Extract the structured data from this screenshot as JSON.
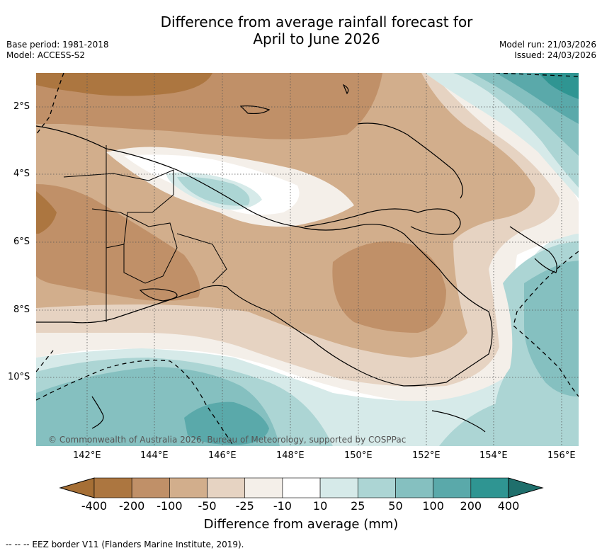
{
  "title_line1": "Difference from average rainfall forecast for",
  "title_line2": "April to June 2026",
  "meta_left": [
    "Base period: 1981-2018",
    "Model: ACCESS-S2"
  ],
  "meta_right": [
    "Model run: 21/03/2026",
    "Issued: 24/03/2026"
  ],
  "lat_labels": [
    "2°S",
    "4°S",
    "6°S",
    "8°S",
    "10°S"
  ],
  "lon_labels": [
    "142°E",
    "144°E",
    "146°E",
    "148°E",
    "150°E",
    "152°E",
    "154°E",
    "156°E"
  ],
  "copyright": "© Commonwealth of Australia 2026, Bureau of Meteorology, supported by COSPPac",
  "colorbar": {
    "title": "Difference from average (mm)",
    "ticks": [
      "-400",
      "-200",
      "-100",
      "-50",
      "-25",
      "-10",
      "10",
      "25",
      "50",
      "100",
      "200",
      "400"
    ],
    "colors": [
      "#a66f35",
      "#ac7640",
      "#c09068",
      "#d2ae8c",
      "#e6d3c2",
      "#f4efe9",
      "#ffffff",
      "#d6eae9",
      "#acd5d4",
      "#85c0c0",
      "#5aa9aa",
      "#2f9592",
      "#1f6f6c"
    ]
  },
  "footer": "--  --  -- EEZ border V11 (Flanders Marine Institute, 2019)."
}
